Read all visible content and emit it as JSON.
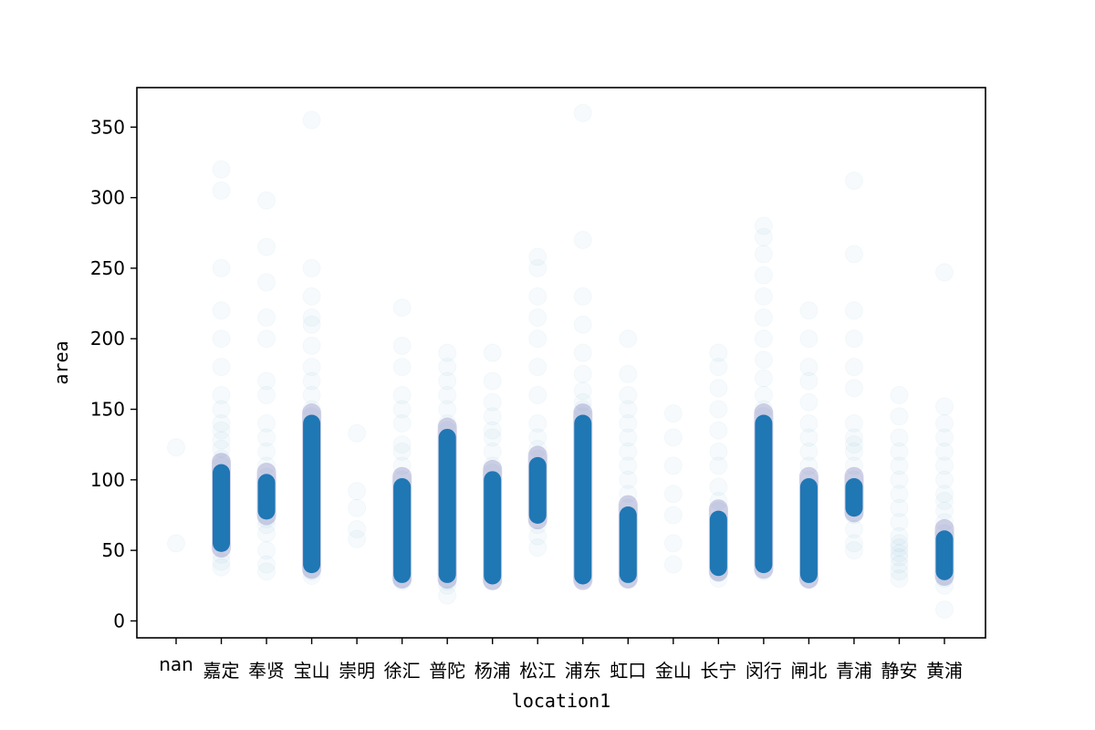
{
  "chart_data": {
    "type": "scatter",
    "xlabel": "location1",
    "ylabel": "area",
    "categories": [
      "nan",
      "嘉定",
      "奉贤",
      "宝山",
      "崇明",
      "徐汇",
      "普陀",
      "杨浦",
      "松江",
      "浦东",
      "虹口",
      "金山",
      "长宁",
      "闵行",
      "闸北",
      "青浦",
      "静安",
      "黄浦"
    ],
    "y_ticks": [
      0,
      50,
      100,
      150,
      200,
      250,
      300,
      350
    ],
    "ylim": [
      -12,
      378
    ],
    "grid": false,
    "marker_color": "#1f77b4",
    "marker_alpha": 0.02,
    "series": [
      {
        "category": "nan",
        "dense": [],
        "points": [
          55,
          123
        ]
      },
      {
        "category": "嘉定",
        "dense": [
          55,
          105
        ],
        "points": [
          38,
          42,
          47,
          110,
          115,
          122,
          128,
          135,
          140,
          150,
          160,
          180,
          200,
          220,
          250,
          305,
          320
        ]
      },
      {
        "category": "奉贤",
        "dense": [
          78,
          98
        ],
        "points": [
          35,
          40,
          50,
          62,
          68,
          72,
          102,
          110,
          120,
          130,
          140,
          160,
          170,
          200,
          215,
          240,
          265,
          298
        ]
      },
      {
        "category": "宝山",
        "dense": [
          40,
          140
        ],
        "points": [
          32,
          35,
          145,
          150,
          160,
          170,
          180,
          195,
          210,
          215,
          230,
          250,
          355
        ]
      },
      {
        "category": "崇明",
        "dense": [],
        "points": [
          58,
          65,
          80,
          92,
          133
        ]
      },
      {
        "category": "徐汇",
        "dense": [
          33,
          95
        ],
        "points": [
          28,
          30,
          100,
          110,
          120,
          125,
          140,
          150,
          160,
          180,
          195,
          222
        ]
      },
      {
        "category": "普陀",
        "dense": [
          33,
          130
        ],
        "points": [
          18,
          25,
          28,
          135,
          140,
          150,
          160,
          170,
          180,
          190
        ]
      },
      {
        "category": "杨浦",
        "dense": [
          32,
          100
        ],
        "points": [
          28,
          105,
          110,
          120,
          130,
          135,
          145,
          155,
          170,
          190
        ]
      },
      {
        "category": "松江",
        "dense": [
          75,
          110
        ],
        "points": [
          52,
          60,
          68,
          115,
          122,
          130,
          140,
          160,
          180,
          200,
          215,
          230,
          250,
          258
        ]
      },
      {
        "category": "浦东",
        "dense": [
          32,
          140
        ],
        "points": [
          30,
          145,
          150,
          155,
          163,
          175,
          190,
          210,
          230,
          270,
          360
        ]
      },
      {
        "category": "虹口",
        "dense": [
          33,
          75
        ],
        "points": [
          30,
          80,
          90,
          100,
          110,
          120,
          130,
          140,
          150,
          160,
          175,
          200
        ]
      },
      {
        "category": "金山",
        "dense": [],
        "points": [
          40,
          55,
          75,
          90,
          110,
          130,
          147
        ]
      },
      {
        "category": "长宁",
        "dense": [
          38,
          72
        ],
        "points": [
          30,
          35,
          78,
          85,
          95,
          110,
          120,
          135,
          150,
          165,
          180,
          190
        ]
      },
      {
        "category": "闵行",
        "dense": [
          40,
          140
        ],
        "points": [
          35,
          145,
          150,
          160,
          172,
          185,
          200,
          215,
          230,
          245,
          260,
          272,
          280
        ]
      },
      {
        "category": "闸北",
        "dense": [
          33,
          95
        ],
        "points": [
          30,
          100,
          110,
          120,
          130,
          140,
          155,
          170,
          180,
          200,
          220
        ]
      },
      {
        "category": "青浦",
        "dense": [
          80,
          95
        ],
        "points": [
          50,
          55,
          65,
          75,
          100,
          110,
          120,
          125,
          130,
          140,
          165,
          180,
          200,
          220,
          260,
          312
        ]
      },
      {
        "category": "静安",
        "dense": [],
        "points": [
          30,
          35,
          40,
          45,
          48,
          52,
          55,
          60,
          70,
          80,
          90,
          100,
          110,
          120,
          130,
          145,
          160
        ]
      },
      {
        "category": "黄浦",
        "dense": [
          35,
          58
        ],
        "points": [
          8,
          25,
          30,
          62,
          70,
          78,
          85,
          90,
          100,
          110,
          120,
          130,
          140,
          152,
          247
        ]
      }
    ]
  }
}
